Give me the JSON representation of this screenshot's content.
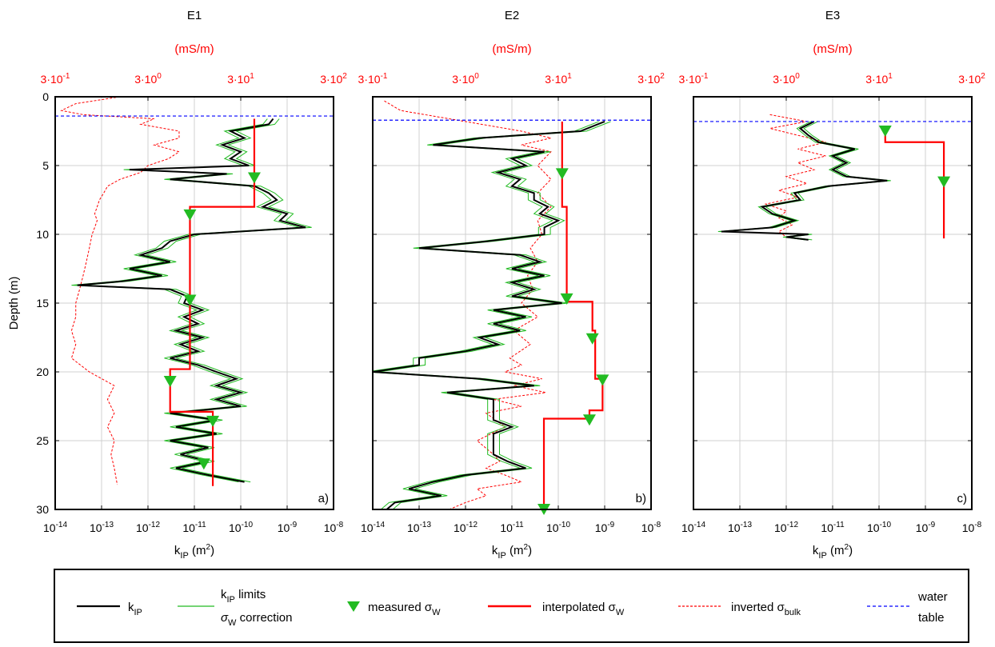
{
  "figure": {
    "ylabel": "Depth (m)",
    "top_unit": "(mS/m)",
    "top_ticks": [
      {
        "base": "3·10",
        "exp": "-1"
      },
      {
        "base": "3·10",
        "exp": "0"
      },
      {
        "base": "3·10",
        "exp": "1"
      },
      {
        "base": "3·10",
        "exp": "2"
      }
    ],
    "bottom_ticks": [
      {
        "base": "10",
        "exp": "-14"
      },
      {
        "base": "10",
        "exp": "-13"
      },
      {
        "base": "10",
        "exp": "-12"
      },
      {
        "base": "10",
        "exp": "-11"
      },
      {
        "base": "10",
        "exp": "-10"
      },
      {
        "base": "10",
        "exp": "-9"
      },
      {
        "base": "10",
        "exp": "-8"
      }
    ],
    "depth_ticks": [
      "0",
      "5",
      "10",
      "15",
      "20",
      "25",
      "30"
    ],
    "xlabel": {
      "main": "k",
      "sub": "IP",
      "rest": " (m",
      "sup": "2",
      "close": ")"
    },
    "colors": {
      "k_ip": "#000000",
      "limits": "#22bb22",
      "measured": "#22bb22",
      "interpolated": "#ff0000",
      "inverted": "#ff0000",
      "water_table": "#0000ff",
      "axis_red": "#ff0000"
    }
  },
  "legend": {
    "k_ip": {
      "main": "k",
      "sub": "IP"
    },
    "limits": {
      "line1_main": "k",
      "line1_sub": "IP",
      "line1_rest": " limits",
      "line2_main": "σ",
      "line2_sub": "W",
      "line2_rest": " correction"
    },
    "measured": {
      "main": "measured σ",
      "sub": "W"
    },
    "interpolated": {
      "main": "interpolated σ",
      "sub": "W"
    },
    "inverted": {
      "main": "inverted σ",
      "sub": "bulk"
    },
    "water_table": {
      "line1": "water",
      "line2": "table"
    }
  },
  "chart_data": [
    {
      "type": "line",
      "title": "E1",
      "panel_label": "a)",
      "xscale": "log",
      "xlim": [
        1e-14,
        1e-08
      ],
      "top_xscale": "log",
      "top_xlim_mS_per_m": [
        0.3,
        300
      ],
      "ylim": [
        0,
        30
      ],
      "y_inverted": true,
      "grid": true,
      "water_table_depth": 1.4,
      "series": [
        {
          "name": "kIP",
          "depth": [
            1.6,
            2.0,
            2.5,
            3.0,
            3.5,
            4.0,
            4.5,
            5.0,
            5.3,
            5.6,
            6.0,
            6.5,
            7.0,
            7.5,
            8.0,
            8.5,
            9.0,
            9.5,
            10.0,
            10.5,
            11.0,
            11.5,
            12.0,
            12.5,
            13.0,
            13.4,
            13.7,
            14.0,
            14.5,
            15.0,
            15.5,
            16.0,
            16.5,
            17.0,
            17.5,
            18.0,
            18.5,
            19.0,
            19.5,
            20.0,
            20.5,
            21.0,
            21.5,
            22.0,
            22.5,
            23.0,
            23.5,
            24.0,
            24.5,
            25.0,
            25.5,
            26.0,
            26.5,
            27.0,
            27.5,
            28.0
          ],
          "k": [
            5e-10,
            4e-10,
            6e-11,
            1.2e-10,
            4e-11,
            1e-10,
            6e-11,
            1.5e-10,
            4e-13,
            5e-11,
            3e-12,
            2e-10,
            4e-10,
            6e-10,
            3e-10,
            1e-09,
            7e-10,
            2.5e-09,
            1e-11,
            3e-12,
            2e-12,
            7e-13,
            3e-12,
            4e-13,
            2e-12,
            3e-13,
            3e-14,
            3e-12,
            7e-12,
            6e-12,
            1.5e-11,
            6e-12,
            1.2e-11,
            4e-12,
            1.5e-11,
            5e-12,
            1.2e-11,
            3e-12,
            1.2e-11,
            3e-11,
            8e-11,
            3e-11,
            1e-10,
            3e-11,
            1e-10,
            3e-12,
            3e-11,
            4e-12,
            3e-11,
            3e-12,
            2e-11,
            5e-12,
            2e-11,
            4e-12,
            2e-11,
            1.2e-10
          ]
        },
        {
          "name": "kIP limits σW correction",
          "depth_range": [
            1.6,
            28.0
          ],
          "relative_band": [
            0.75,
            1.35
          ]
        },
        {
          "name": "measured σW",
          "depth": [
            5.9,
            8.6,
            14.8,
            20.7,
            23.6,
            26.7
          ],
          "sigma_mS_per_m": [
            42,
            8.5,
            8.5,
            5.2,
            15,
            12
          ]
        },
        {
          "name": "interpolated σW",
          "depth": [
            1.6,
            8.0,
            8.0,
            19.8,
            19.8,
            22.9,
            22.9,
            28.3
          ],
          "sigma_mS_per_m": [
            42,
            42,
            8.5,
            8.5,
            5.2,
            5.2,
            15,
            15
          ]
        },
        {
          "name": "inverted σbulk",
          "depth": [
            0,
            0.5,
            1.0,
            1.3,
            1.6,
            2.0,
            2.5,
            3.0,
            3.5,
            4.0,
            4.5,
            5.0,
            5.5,
            6.0,
            6.5,
            7.0,
            7.5,
            8.0,
            8.5,
            9.0,
            9.5,
            10.0,
            11.0,
            12.0,
            13.0,
            14.0,
            15.0,
            16.0,
            17.0,
            18.0,
            19.0,
            20.0,
            21.0,
            22.0,
            23.0,
            24.0,
            25.0,
            26.0,
            27.0,
            28.2
          ],
          "sigma_mS_per_m": [
            1.5,
            0.5,
            0.35,
            0.6,
            3.5,
            2.5,
            6.5,
            6.5,
            3.5,
            6.5,
            5,
            3,
            2.5,
            1.5,
            1.1,
            1.0,
            0.9,
            0.85,
            0.8,
            0.85,
            0.8,
            0.75,
            0.7,
            0.65,
            0.6,
            0.55,
            0.5,
            0.5,
            0.45,
            0.5,
            0.45,
            0.7,
            1.3,
            1.1,
            1.3,
            1.1,
            1.3,
            1.2,
            1.3,
            1.4
          ]
        },
        {
          "name": "water table",
          "depth": [
            1.4,
            1.4
          ],
          "sigma_mS_per_m": [
            0.3,
            300
          ]
        }
      ]
    },
    {
      "type": "line",
      "title": "E2",
      "panel_label": "b)",
      "xscale": "log",
      "xlim": [
        1e-14,
        1e-08
      ],
      "top_xscale": "log",
      "top_xlim_mS_per_m": [
        0.3,
        300
      ],
      "ylim": [
        0,
        30
      ],
      "y_inverted": true,
      "grid": true,
      "water_table_depth": 1.7,
      "series": [
        {
          "name": "kIP",
          "depth": [
            1.8,
            2.5,
            3.0,
            3.5,
            4.0,
            4.5,
            5.0,
            5.5,
            6.0,
            6.5,
            7.0,
            7.5,
            8.0,
            8.5,
            9.0,
            9.5,
            10.0,
            10.5,
            11.0,
            11.5,
            12.0,
            12.5,
            13.0,
            13.5,
            14.0,
            14.5,
            15.0,
            15.5,
            16.0,
            16.5,
            17.0,
            17.5,
            18.0,
            18.5,
            19.0,
            19.5,
            20.0,
            20.5,
            21.0,
            21.5,
            22.0,
            22.5,
            23.0,
            23.5,
            24.0,
            24.5,
            25.0,
            25.5,
            26.0,
            26.5,
            27.0,
            27.5,
            28.0,
            28.5,
            29.0,
            29.5,
            30.0
          ],
          "k": [
            1e-09,
            3e-10,
            2e-12,
            2e-13,
            5e-11,
            1e-11,
            2e-11,
            5e-12,
            1.5e-11,
            1e-11,
            3e-11,
            3e-11,
            6e-11,
            4e-11,
            1e-10,
            5e-11,
            5e-11,
            3e-12,
            1e-13,
            1.5e-11,
            4e-11,
            1e-11,
            5e-11,
            1e-11,
            3e-11,
            1e-11,
            1.2e-10,
            4e-12,
            2e-11,
            4e-12,
            1.5e-11,
            2e-12,
            5e-12,
            1e-12,
            1e-13,
            1e-13,
            1e-14,
            2e-12,
            3e-11,
            4e-13,
            4e-12,
            4e-12,
            4e-12,
            4e-12,
            1e-11,
            4e-12,
            4e-12,
            4e-12,
            4e-12,
            8e-12,
            2e-11,
            1e-12,
            2e-13,
            6e-14,
            3e-13,
            3e-14,
            2e-14
          ]
        },
        {
          "name": "kIP limits σW correction",
          "depth_range": [
            1.8,
            30.0
          ],
          "relative_band": [
            0.75,
            1.35
          ]
        },
        {
          "name": "measured σW",
          "depth": [
            5.6,
            14.7,
            17.6,
            20.6,
            23.5,
            30.0
          ],
          "sigma_mS_per_m": [
            33,
            37,
            70,
            90,
            65,
            21
          ]
        },
        {
          "name": "interpolated σW",
          "depth": [
            1.8,
            8.0,
            8.0,
            14.9,
            14.9,
            17.0,
            17.0,
            20.5,
            20.5,
            22.8,
            22.8,
            23.4,
            23.4,
            30.0
          ],
          "sigma_mS_per_m": [
            33,
            33,
            37,
            37,
            70,
            70,
            75,
            75,
            90,
            90,
            65,
            65,
            21,
            21
          ]
        },
        {
          "name": "inverted σbulk",
          "depth": [
            0.3,
            1.0,
            1.8,
            2.5,
            3.0,
            3.5,
            4.0,
            5.0,
            6.0,
            7.0,
            8.0,
            9.0,
            10.0,
            11.0,
            12.0,
            13.0,
            14.0,
            15.0,
            16.0,
            17.0,
            18.0,
            19.0,
            19.5,
            20.0,
            20.5,
            21.0,
            21.5,
            22.0,
            22.5,
            23.0,
            24.0,
            25.0,
            26.0,
            26.5,
            27.0,
            27.5,
            28.0,
            28.5,
            29.0,
            29.5,
            30.0
          ],
          "sigma_mS_per_m": [
            0.4,
            0.6,
            3,
            12,
            25,
            12,
            25,
            18,
            25,
            18,
            25,
            18,
            20,
            15,
            18,
            14,
            16,
            12,
            18,
            10,
            15,
            9,
            12,
            8,
            20,
            10,
            22,
            6,
            12,
            5,
            8,
            4,
            6,
            7,
            5,
            8,
            12,
            4,
            5,
            3,
            2
          ]
        },
        {
          "name": "water table",
          "depth": [
            1.7,
            1.7
          ],
          "sigma_mS_per_m": [
            0.3,
            300
          ]
        }
      ]
    },
    {
      "type": "line",
      "title": "E3",
      "panel_label": "c)",
      "xscale": "log",
      "xlim": [
        1e-14,
        1e-08
      ],
      "top_xscale": "log",
      "top_xlim_mS_per_m": [
        0.3,
        300
      ],
      "ylim": [
        0,
        30
      ],
      "y_inverted": true,
      "grid": true,
      "water_table_depth": 1.8,
      "series": [
        {
          "name": "kIP",
          "depth": [
            1.8,
            2.3,
            2.8,
            3.3,
            3.8,
            4.3,
            4.8,
            5.3,
            5.8,
            6.1,
            6.5,
            7.0,
            7.5,
            8.0,
            8.5,
            9.0,
            9.5,
            9.8,
            10.0,
            10.2,
            10.4
          ],
          "k": [
            4e-12,
            2e-12,
            3e-12,
            5e-12,
            3e-11,
            1e-11,
            2e-11,
            1e-11,
            2e-11,
            1.5e-10,
            8e-12,
            1.5e-12,
            2e-12,
            3e-13,
            5e-13,
            1.5e-12,
            5e-13,
            4e-14,
            3e-12,
            1e-12,
            3e-12
          ]
        },
        {
          "name": "kIP limits σW correction",
          "depth_range": [
            1.8,
            10.4
          ],
          "relative_band": [
            0.85,
            1.2
          ]
        },
        {
          "name": "measured σW",
          "depth": [
            2.5,
            6.2
          ],
          "sigma_mS_per_m": [
            35,
            150
          ]
        },
        {
          "name": "interpolated σW",
          "depth": [
            2.6,
            3.3,
            3.3,
            10.3
          ],
          "sigma_mS_per_m": [
            35,
            35,
            150,
            150
          ]
        },
        {
          "name": "inverted σbulk",
          "depth": [
            1.3,
            1.8,
            2.3,
            2.8,
            3.3,
            3.8,
            4.3,
            4.8,
            5.3,
            5.8,
            6.3,
            6.8,
            7.3,
            7.8,
            8.3,
            8.8,
            9.3,
            9.8,
            10.2
          ],
          "sigma_mS_per_m": [
            2,
            5,
            2,
            4,
            8,
            4,
            8,
            4,
            6,
            3,
            5,
            2.5,
            4,
            1.8,
            3,
            2.5,
            3.5,
            2.5,
            3
          ]
        },
        {
          "name": "water table",
          "depth": [
            1.8,
            1.8
          ],
          "sigma_mS_per_m": [
            0.3,
            300
          ]
        }
      ]
    }
  ]
}
